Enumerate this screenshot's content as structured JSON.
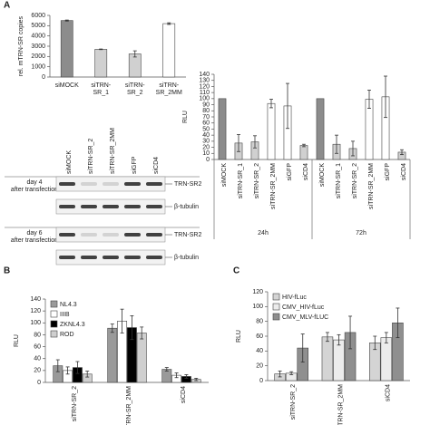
{
  "panels": [
    "A",
    "B",
    "C"
  ],
  "chart_data": [
    {
      "type": "bar",
      "ylabel": "rel. mTRN-SR copies",
      "categories": [
        "siMOCK",
        "siTRN-SR_1",
        "siTRN-SR_2",
        "siTRN-SR_2MM"
      ],
      "values": [
        5500,
        2700,
        2250,
        5200
      ],
      "errors": [
        50,
        30,
        300,
        80
      ],
      "colors": [
        "#8c8c8c",
        "#d0d0d0",
        "#d0d0d0",
        "#ffffff"
      ],
      "ylim": [
        0,
        6000
      ],
      "yticks": [
        0,
        1000,
        2000,
        3000,
        4000,
        5000,
        6000
      ]
    },
    {
      "type": "bar",
      "ylabel": "RLU",
      "categories": [
        "siMOCK",
        "siTRN-SR_1",
        "siTRN-SR_2",
        "siTRN-SR_2MM",
        "siGFP",
        "siCD4"
      ],
      "colors": [
        "#8c8c8c",
        "#d0d0d0",
        "#d0d0d0",
        "#ffffff",
        "#ffffff",
        "#d0d0d0"
      ],
      "groups": [
        {
          "name": "24h",
          "values": [
            100,
            27,
            29,
            92,
            88,
            23
          ],
          "errors": [
            0,
            14,
            10,
            7,
            37,
            2
          ]
        },
        {
          "name": "72h",
          "values": [
            100,
            25,
            18,
            99,
            103,
            12
          ],
          "errors": [
            0,
            15,
            12,
            15,
            34,
            4
          ]
        }
      ],
      "ylim": [
        0,
        140
      ],
      "yticks": [
        0,
        10,
        20,
        30,
        40,
        50,
        60,
        70,
        80,
        90,
        100,
        110,
        120,
        130,
        140
      ]
    },
    {
      "type": "bar",
      "ylabel": "RLU",
      "legend": "top-left",
      "categories": [
        "siTRN-SR_2",
        "siTRN-SR_2MM",
        "siCD4"
      ],
      "series": [
        {
          "name": "NL4.3",
          "color": "#9a9a9a",
          "values": [
            28,
            91,
            22
          ],
          "errors": [
            10,
            7,
            3
          ]
        },
        {
          "name": "IIIB",
          "color": "#ffffff",
          "values": [
            20,
            103,
            12
          ],
          "errors": [
            6,
            20,
            4
          ]
        },
        {
          "name": "ZKNL4.3",
          "color": "#000000",
          "values": [
            25,
            92,
            10
          ],
          "errors": [
            10,
            20,
            3
          ]
        },
        {
          "name": "ROD",
          "color": "#cfcfcf",
          "values": [
            14,
            83,
            5
          ],
          "errors": [
            5,
            10,
            2
          ]
        }
      ],
      "ylim": [
        0,
        140
      ],
      "yticks": [
        0,
        20,
        40,
        60,
        80,
        100,
        120,
        140
      ]
    },
    {
      "type": "bar",
      "ylabel": "RLU",
      "legend": "top-left",
      "categories": [
        "siTRN-SR_2",
        "siTRN-SR_2MM",
        "siCD4"
      ],
      "series": [
        {
          "name": "HIV-fLuc",
          "color": "#d4d4d4",
          "values": [
            9,
            59,
            51
          ],
          "errors": [
            4,
            6,
            9
          ]
        },
        {
          "name": "CMV_HIV-fLuc",
          "color": "#ececec",
          "values": [
            10,
            55,
            58
          ],
          "errors": [
            2,
            7,
            7
          ]
        },
        {
          "name": "CMV_MLV-fLUC",
          "color": "#8f8f8f",
          "values": [
            44,
            65,
            78
          ],
          "errors": [
            19,
            22,
            20
          ]
        }
      ],
      "ylim": [
        0,
        120
      ],
      "yticks": [
        0,
        20,
        40,
        60,
        80,
        100,
        120
      ]
    }
  ],
  "blot": {
    "lanes": [
      "siMOCK",
      "siTRN-SR_2",
      "siTRN-SR_2MM",
      "siGFP",
      "siCD4"
    ],
    "rows": [
      {
        "label": [
          "day 4",
          "after transfection"
        ]
      },
      {
        "label": [
          "day 6",
          "after transfection"
        ]
      }
    ],
    "markers": [
      "TRN-SR2",
      "β-tubulin"
    ]
  }
}
